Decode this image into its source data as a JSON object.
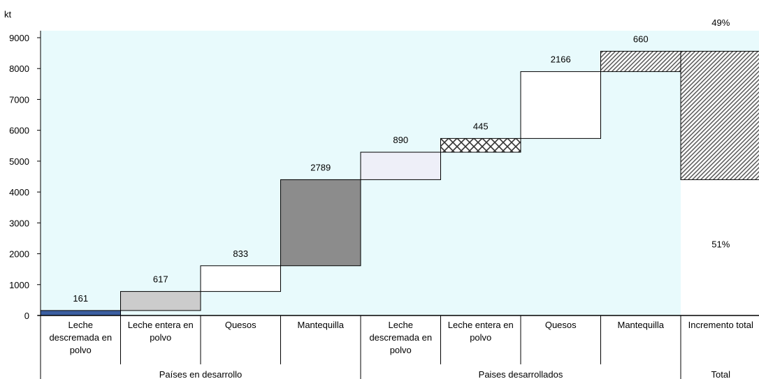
{
  "chart_data": {
    "type": "bar",
    "ylabel": "kt",
    "ylim": [
      0,
      9000
    ],
    "yticks": [
      0,
      1000,
      2000,
      3000,
      4000,
      5000,
      6000,
      7000,
      8000,
      9000
    ],
    "grid": false,
    "plot_background": "#e8fafc",
    "categories": [
      {
        "label": [
          "Leche",
          "descremada en",
          "polvo"
        ],
        "group": "Países en desarrollo"
      },
      {
        "label": [
          "Leche entera en",
          "polvo"
        ],
        "group": "Países en desarrollo"
      },
      {
        "label": [
          "Quesos"
        ],
        "group": "Países en desarrollo"
      },
      {
        "label": [
          "Mantequilla"
        ],
        "group": "Países en desarrollo"
      },
      {
        "label": [
          "Leche",
          "descremada en",
          "polvo"
        ],
        "group": "Paises desarrollados"
      },
      {
        "label": [
          "Leche entera en",
          "polvo"
        ],
        "group": "Paises desarrollados"
      },
      {
        "label": [
          "Quesos"
        ],
        "group": "Paises desarrollados"
      },
      {
        "label": [
          "Mantequilla"
        ],
        "group": "Paises desarrollados"
      },
      {
        "label": [
          "Incremento total"
        ],
        "group": "Total"
      }
    ],
    "groups": [
      {
        "name": "Países en desarrollo",
        "span": 4
      },
      {
        "name": "Paises desarrollados",
        "span": 4
      },
      {
        "name": "Total",
        "span": 1
      }
    ],
    "steps": [
      {
        "value": 161,
        "label": "161",
        "fill": "#3b5ea0",
        "pattern": "solid"
      },
      {
        "value": 617,
        "label": "617",
        "fill": "#cccccc",
        "pattern": "solid"
      },
      {
        "value": 833,
        "label": "833",
        "fill": "#ffffff",
        "pattern": "solid"
      },
      {
        "value": 2789,
        "label": "2789",
        "fill": "#8c8c8c",
        "pattern": "solid"
      },
      {
        "value": 890,
        "label": "890",
        "fill": "#eeeff8",
        "pattern": "solid"
      },
      {
        "value": 445,
        "label": "445",
        "fill": "#ffffff",
        "pattern": "crosshatch"
      },
      {
        "value": 2166,
        "label": "2166",
        "fill": "#ffffff",
        "pattern": "solid"
      },
      {
        "value": 660,
        "label": "660",
        "fill": "#ffffff",
        "pattern": "diagonal"
      }
    ],
    "total": {
      "segments": [
        {
          "value": 4400,
          "label": "51%",
          "fill": "#ffffff",
          "pattern": "solid"
        },
        {
          "value": 4161,
          "label": "49%",
          "fill": "#ffffff",
          "pattern": "diagonal"
        }
      ]
    }
  }
}
